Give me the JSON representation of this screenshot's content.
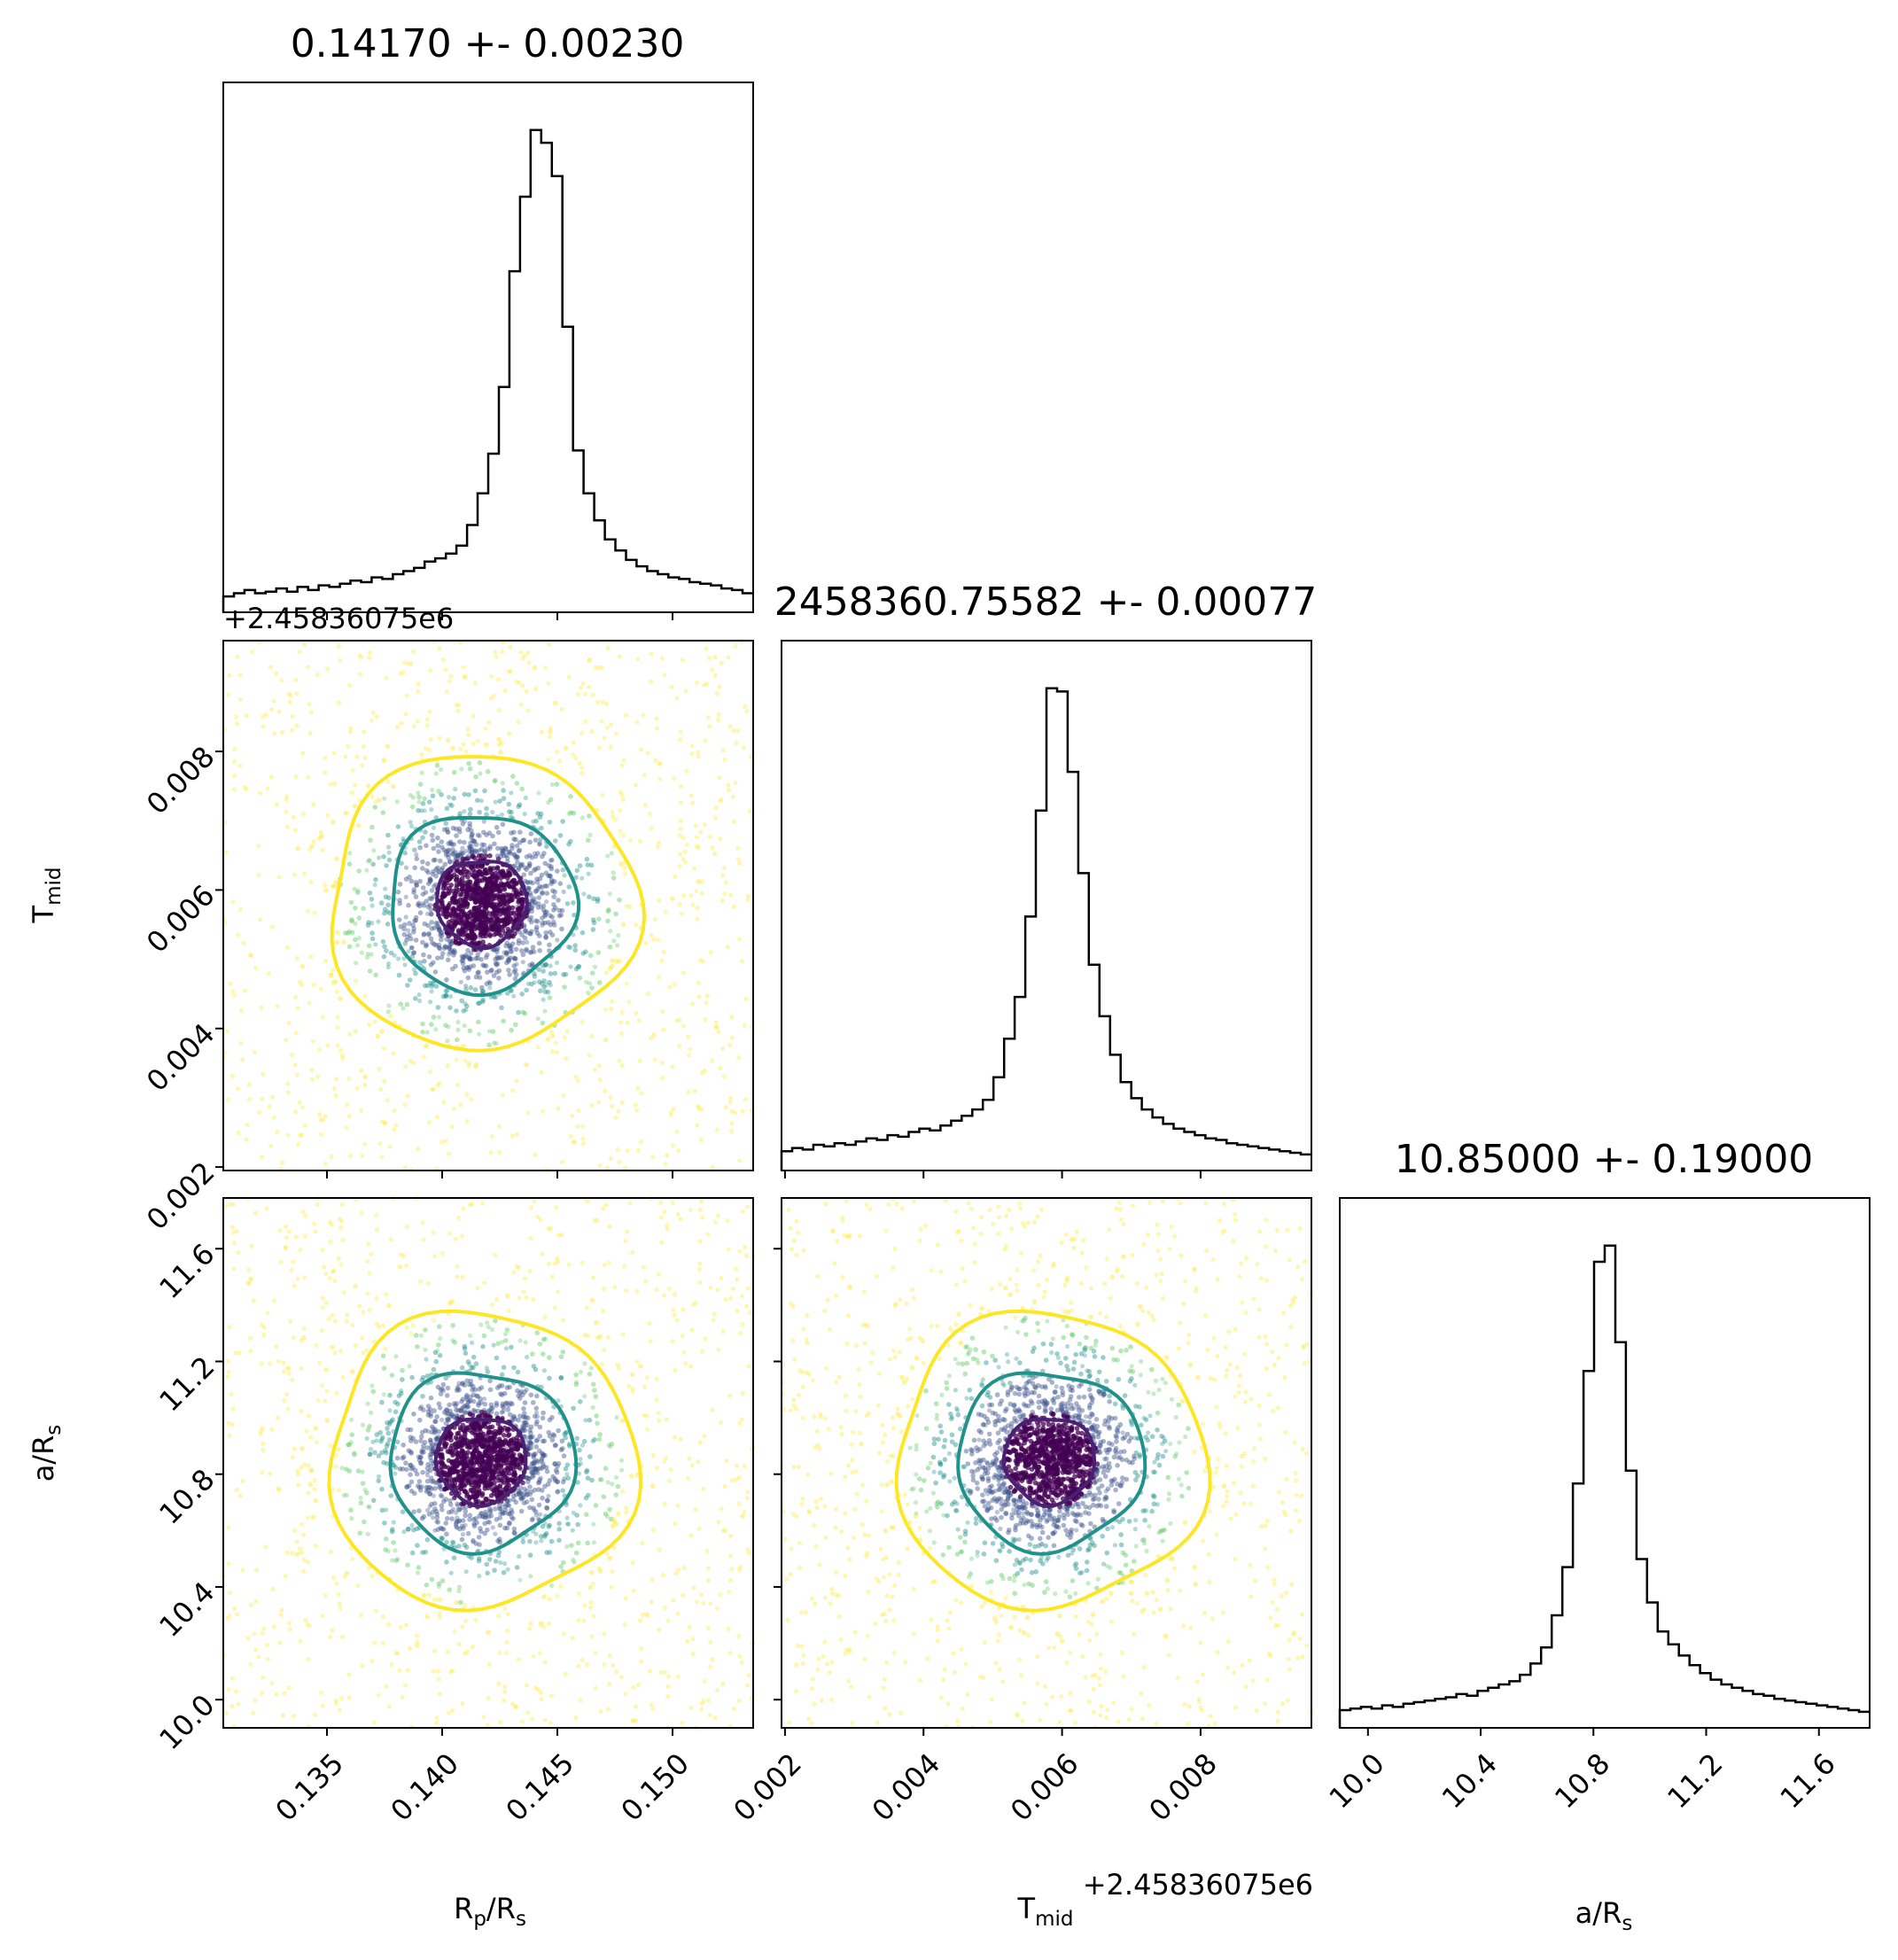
{
  "chart_data": {
    "type": "scatter",
    "subtype": "corner-plot",
    "params": [
      {
        "key": "rp",
        "label_main": "R",
        "label_sub": "p",
        "label_main2": "/R",
        "label_sub2": "s",
        "title": "0.14170 +- 0.00230",
        "range": [
          0.1305,
          0.1535
        ],
        "ticks": [
          0.135,
          0.14,
          0.145,
          0.15
        ],
        "tick_labels": [
          "0.135",
          "0.140",
          "0.145",
          "0.150"
        ],
        "center": 0.1417,
        "sigma": 0.0023
      },
      {
        "key": "tmid",
        "label_main": "T",
        "label_sub": "mid",
        "title": "2458360.75582 +- 0.00077",
        "range": [
          0.00195,
          0.0096
        ],
        "ticks": [
          0.002,
          0.004,
          0.006,
          0.008
        ],
        "tick_labels": [
          "0.002",
          "0.004",
          "0.006",
          "0.008"
        ],
        "offset": "+2.45836075e6",
        "center": 0.00582,
        "sigma": 0.00077
      },
      {
        "key": "ar",
        "label_main": "a/R",
        "label_sub": "s",
        "title": "10.85000 +- 0.19000",
        "range": [
          9.9,
          11.78
        ],
        "ticks": [
          10.0,
          10.4,
          10.8,
          11.2,
          11.6
        ],
        "tick_labels": [
          "10.0",
          "10.4",
          "10.8",
          "11.2",
          "11.6"
        ],
        "center": 10.85,
        "sigma": 0.19
      }
    ],
    "histograms": [
      {
        "param": "rp",
        "bins": 50,
        "counts": [
          10,
          12,
          14,
          12,
          13,
          15,
          13,
          16,
          14,
          17,
          16,
          18,
          20,
          19,
          22,
          21,
          24,
          26,
          28,
          32,
          34,
          37,
          42,
          55,
          75,
          100,
          142,
          215,
          262,
          304,
          296,
          275,
          180,
          102,
          75,
          58,
          46,
          39,
          33,
          29,
          26,
          24,
          22,
          21,
          19,
          18,
          17,
          15,
          14,
          12
        ]
      },
      {
        "param": "tmid",
        "bins": 50,
        "counts": [
          12,
          14,
          13,
          16,
          15,
          17,
          16,
          18,
          20,
          19,
          22,
          21,
          24,
          26,
          25,
          28,
          31,
          34,
          38,
          44,
          58,
          82,
          108,
          158,
          224,
          300,
          298,
          248,
          185,
          128,
          96,
          72,
          55,
          45,
          38,
          33,
          29,
          26,
          24,
          22,
          20,
          19,
          17,
          16,
          15,
          14,
          13,
          12,
          11,
          10
        ]
      },
      {
        "param": "ar",
        "bins": 50,
        "counts": [
          11,
          12,
          13,
          12,
          14,
          13,
          15,
          16,
          17,
          18,
          19,
          21,
          20,
          23,
          25,
          27,
          29,
          33,
          40,
          50,
          70,
          100,
          152,
          222,
          290,
          300,
          240,
          160,
          105,
          78,
          60,
          52,
          45,
          39,
          34,
          30,
          27,
          25,
          23,
          21,
          20,
          18,
          17,
          16,
          15,
          14,
          13,
          12,
          11,
          10
        ]
      }
    ],
    "contour_levels": [
      "1-sigma",
      "2-sigma",
      "3-sigma"
    ],
    "colors": {
      "contour_inner": "#482173",
      "contour_mid": "#21918c",
      "contour_outer": "#fde725",
      "point_dark": "#440154",
      "point_purple": "#3b528b",
      "point_teal": "#21918c",
      "point_green": "#5ec962",
      "point_yellow": "#fde725",
      "hist_line": "#000000"
    }
  }
}
